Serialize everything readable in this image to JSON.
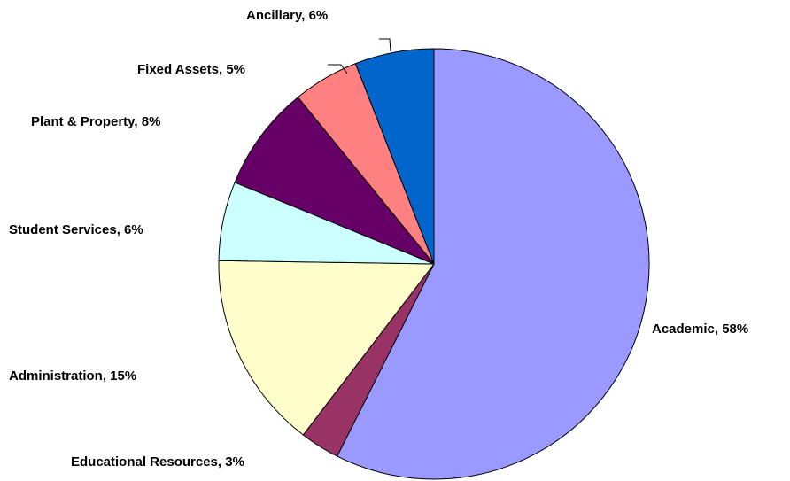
{
  "chart_data": {
    "type": "pie",
    "values": [
      58,
      3,
      15,
      6,
      8,
      5,
      6
    ],
    "value_labels": [
      "Academic, 58%",
      "Educational Resources, 3%",
      "Administration, 15%",
      "Student Services, 6%",
      "Plant & Property, 8%",
      "Fixed Assets, 5%",
      "Ancillary, 6%"
    ],
    "colors": [
      "#9999ff",
      "#993366",
      "#ffffcc",
      "#ccffff",
      "#660066",
      "#ff8080",
      "#0066cc"
    ]
  }
}
